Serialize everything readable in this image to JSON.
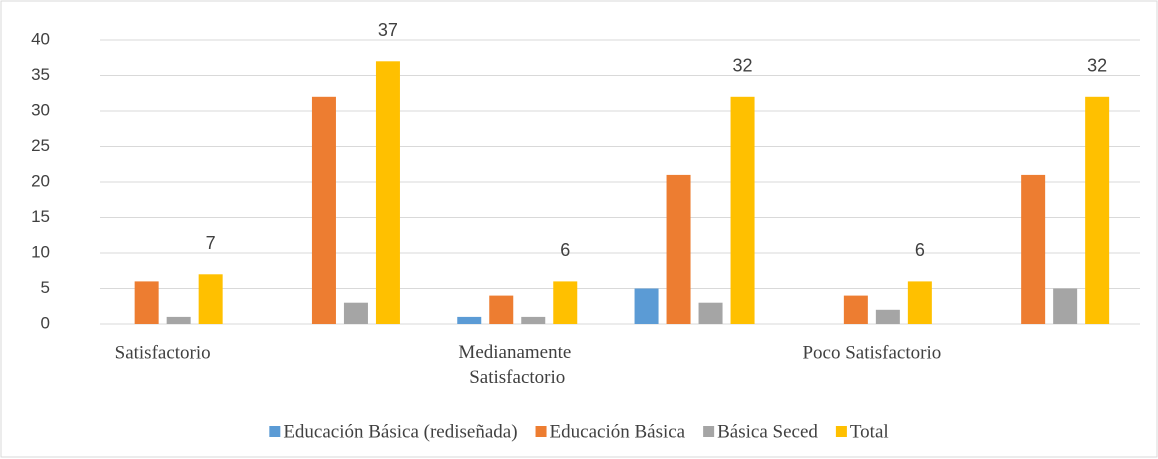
{
  "chart_data": {
    "type": "bar",
    "categories": [
      "Satisfactorio",
      null,
      "Medianamente Satisfactorio",
      null,
      "Poco Satisfactorio",
      null
    ],
    "series": [
      {
        "name": "Educación Básica (rediseñada)",
        "color": "#5b9bd5",
        "values": [
          0,
          0,
          1,
          5,
          0,
          0
        ]
      },
      {
        "name": "Educación Básica",
        "color": "#ed7d31",
        "values": [
          6,
          32,
          4,
          21,
          4,
          21
        ]
      },
      {
        "name": "Básica Seced",
        "color": "#a5a5a5",
        "values": [
          1,
          3,
          1,
          3,
          2,
          5
        ]
      },
      {
        "name": "Total",
        "color": "#ffc000",
        "values": [
          7,
          37,
          6,
          32,
          6,
          32
        ],
        "data_labels": true
      }
    ],
    "ylim": [
      0,
      40
    ],
    "yticks": [
      0,
      5,
      10,
      15,
      20,
      25,
      30,
      35,
      40
    ],
    "grid": true,
    "legend": "bottom"
  }
}
